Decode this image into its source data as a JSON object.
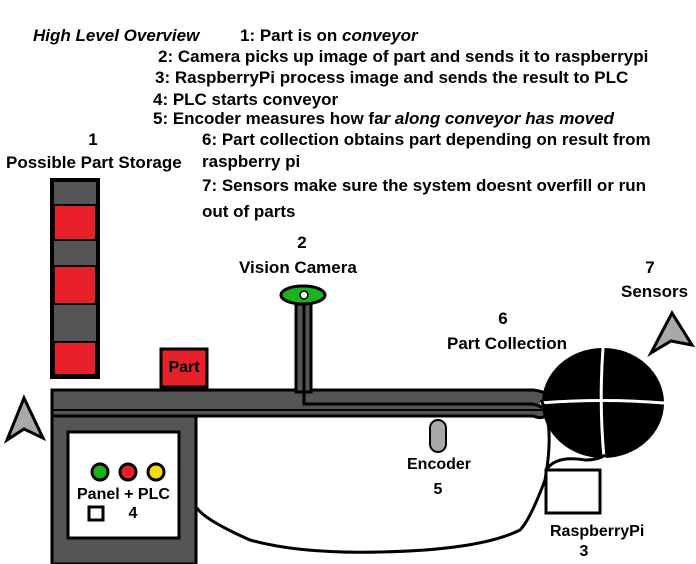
{
  "title": "High Level Overview",
  "steps": {
    "s1": "1: Part is on ",
    "s1_em": "conveyor",
    "s2": "2: Camera picks up image of part and sends it to raspberrypi",
    "s3": "3: RaspberryPi process image and sends the result to PLC",
    "s4": "4: PLC starts conveyor",
    "s5": "5: Encoder measures how fa",
    "s5_em": "r along conveyor has moved",
    "s6_line1": "6: Part collection obtains part depending on result from",
    "s6_line2": "raspberry pi",
    "s7_line1": "7: Sensors make sure the system doesnt overfill or run",
    "s7_line2": "out of parts"
  },
  "labels": {
    "storage_num": "1",
    "storage_name": "Possible Part Storage",
    "camera_num": "2",
    "camera_name": "Vision Camera",
    "collection_num": "6",
    "collection_name": "Part Collection",
    "sensors_num": "7",
    "sensors_name": "Sensors",
    "part": "Part",
    "encoder_name": "Encoder",
    "encoder_num": "5",
    "panel_name": "Panel + PLC",
    "panel_num": "4",
    "raspberry_name": "RaspberryPi",
    "raspberry_num": "3"
  },
  "colors": {
    "storage_red": "#e8202a",
    "storage_gray": "#555555",
    "conveyor": "#555555",
    "camera_green": "#1db31d",
    "light_green": "#1db31d",
    "light_red": "#e8202a",
    "light_yellow": "#f2dc10",
    "sensor_gray": "#a9a9a9"
  }
}
